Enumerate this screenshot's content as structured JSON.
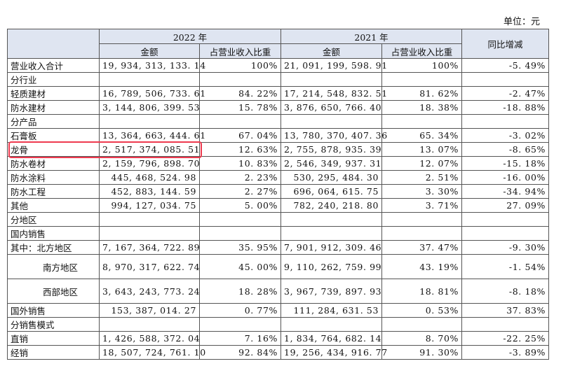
{
  "unit_label": "单位：元",
  "header": {
    "year_2022": "2022 年",
    "year_2021": "2021 年",
    "amount": "金额",
    "ratio": "占营业收入比重",
    "change": "同比增减"
  },
  "total": {
    "label": "营业收入合计",
    "a2022": "19, 934, 313, 133. 14",
    "r2022": "100%",
    "a2021": "21, 091, 199, 598. 91",
    "r2021": "100%",
    "change": "-5. 49%"
  },
  "section_industry": "分行业",
  "industry": [
    {
      "label": "轻质建材",
      "a2022": "16, 789, 506, 733. 61",
      "r2022": "84. 22%",
      "a2021": "17, 214, 548, 832. 51",
      "r2021": "81. 62%",
      "change": "-2. 47%"
    },
    {
      "label": "防水建材",
      "a2022": "3, 144, 806, 399. 53",
      "r2022": "15. 78%",
      "a2021": "3, 876, 650, 766. 40",
      "r2021": "18. 38%",
      "change": "-18. 88%"
    }
  ],
  "section_product": "分产品",
  "product": [
    {
      "label": "石膏板",
      "a2022": "13, 364, 663, 444. 61",
      "r2022": "67. 04%",
      "a2021": "13, 780, 370, 407. 36",
      "r2021": "65. 34%",
      "change": "-3. 02%"
    },
    {
      "label": "龙骨",
      "a2022": "2, 517, 374, 085. 51",
      "r2022": "12. 63%",
      "a2021": "2, 755, 878, 935. 39",
      "r2021": "13. 07%",
      "change": "-8. 65%"
    },
    {
      "label": "防水卷材",
      "a2022": "2, 159, 796, 898. 70",
      "r2022": "10. 83%",
      "a2021": "2, 546, 349, 937. 31",
      "r2021": "12. 07%",
      "change": "-15. 18%"
    },
    {
      "label": "防水涂料",
      "a2022": "445, 468, 524. 98",
      "r2022": "2. 23%",
      "a2021": "530, 295, 484. 30",
      "r2021": "2. 51%",
      "change": "-16. 00%"
    },
    {
      "label": "防水工程",
      "a2022": "452, 883, 144. 59",
      "r2022": "2. 27%",
      "a2021": "696, 064, 615. 75",
      "r2021": "3. 30%",
      "change": "-34. 94%"
    },
    {
      "label": "其他",
      "a2022": "994, 127, 034. 75",
      "r2022": "5. 00%",
      "a2021": "782, 240, 218. 80",
      "r2021": "3. 71%",
      "change": "27. 09%"
    }
  ],
  "section_region": "分地区",
  "domestic_label": "国内销售",
  "region": [
    {
      "label": "其中：北方地区",
      "a2022": "7, 167, 364, 722. 89",
      "r2022": "35. 95%",
      "a2021": "7, 901, 912, 309. 46",
      "r2021": "37. 47%",
      "change": "-9. 30%"
    },
    {
      "label": "南方地区",
      "a2022": "8, 970, 317, 622. 74",
      "r2022": "45. 00%",
      "a2021": "9, 110, 262, 759. 99",
      "r2021": "43. 19%",
      "change": "-1. 54%"
    },
    {
      "label": "西部地区",
      "a2022": "3, 643, 243, 773. 24",
      "r2022": "18. 28%",
      "a2021": "3, 967, 739, 897. 93",
      "r2021": "18. 81%",
      "change": "-8. 18%"
    },
    {
      "label": "国外销售",
      "a2022": "153, 387, 014. 27",
      "r2022": "0. 77%",
      "a2021": "111, 284, 631. 53",
      "r2021": "0. 53%",
      "change": "37. 83%"
    }
  ],
  "section_mode": "分销售模式",
  "mode": [
    {
      "label": "直销",
      "a2022": "1, 426, 588, 372. 04",
      "r2022": "7. 16%",
      "a2021": "1, 834, 764, 682. 14",
      "r2021": "8. 70%",
      "change": "-22. 25%"
    },
    {
      "label": "经销",
      "a2022": "18, 507, 724, 761. 10",
      "r2022": "92. 84%",
      "a2021": "19, 256, 434, 916. 77",
      "r2021": "91. 30%",
      "change": "-3. 89%"
    }
  ],
  "highlight_color": "#ee3a4f",
  "header_bg": "#dfe5f1"
}
